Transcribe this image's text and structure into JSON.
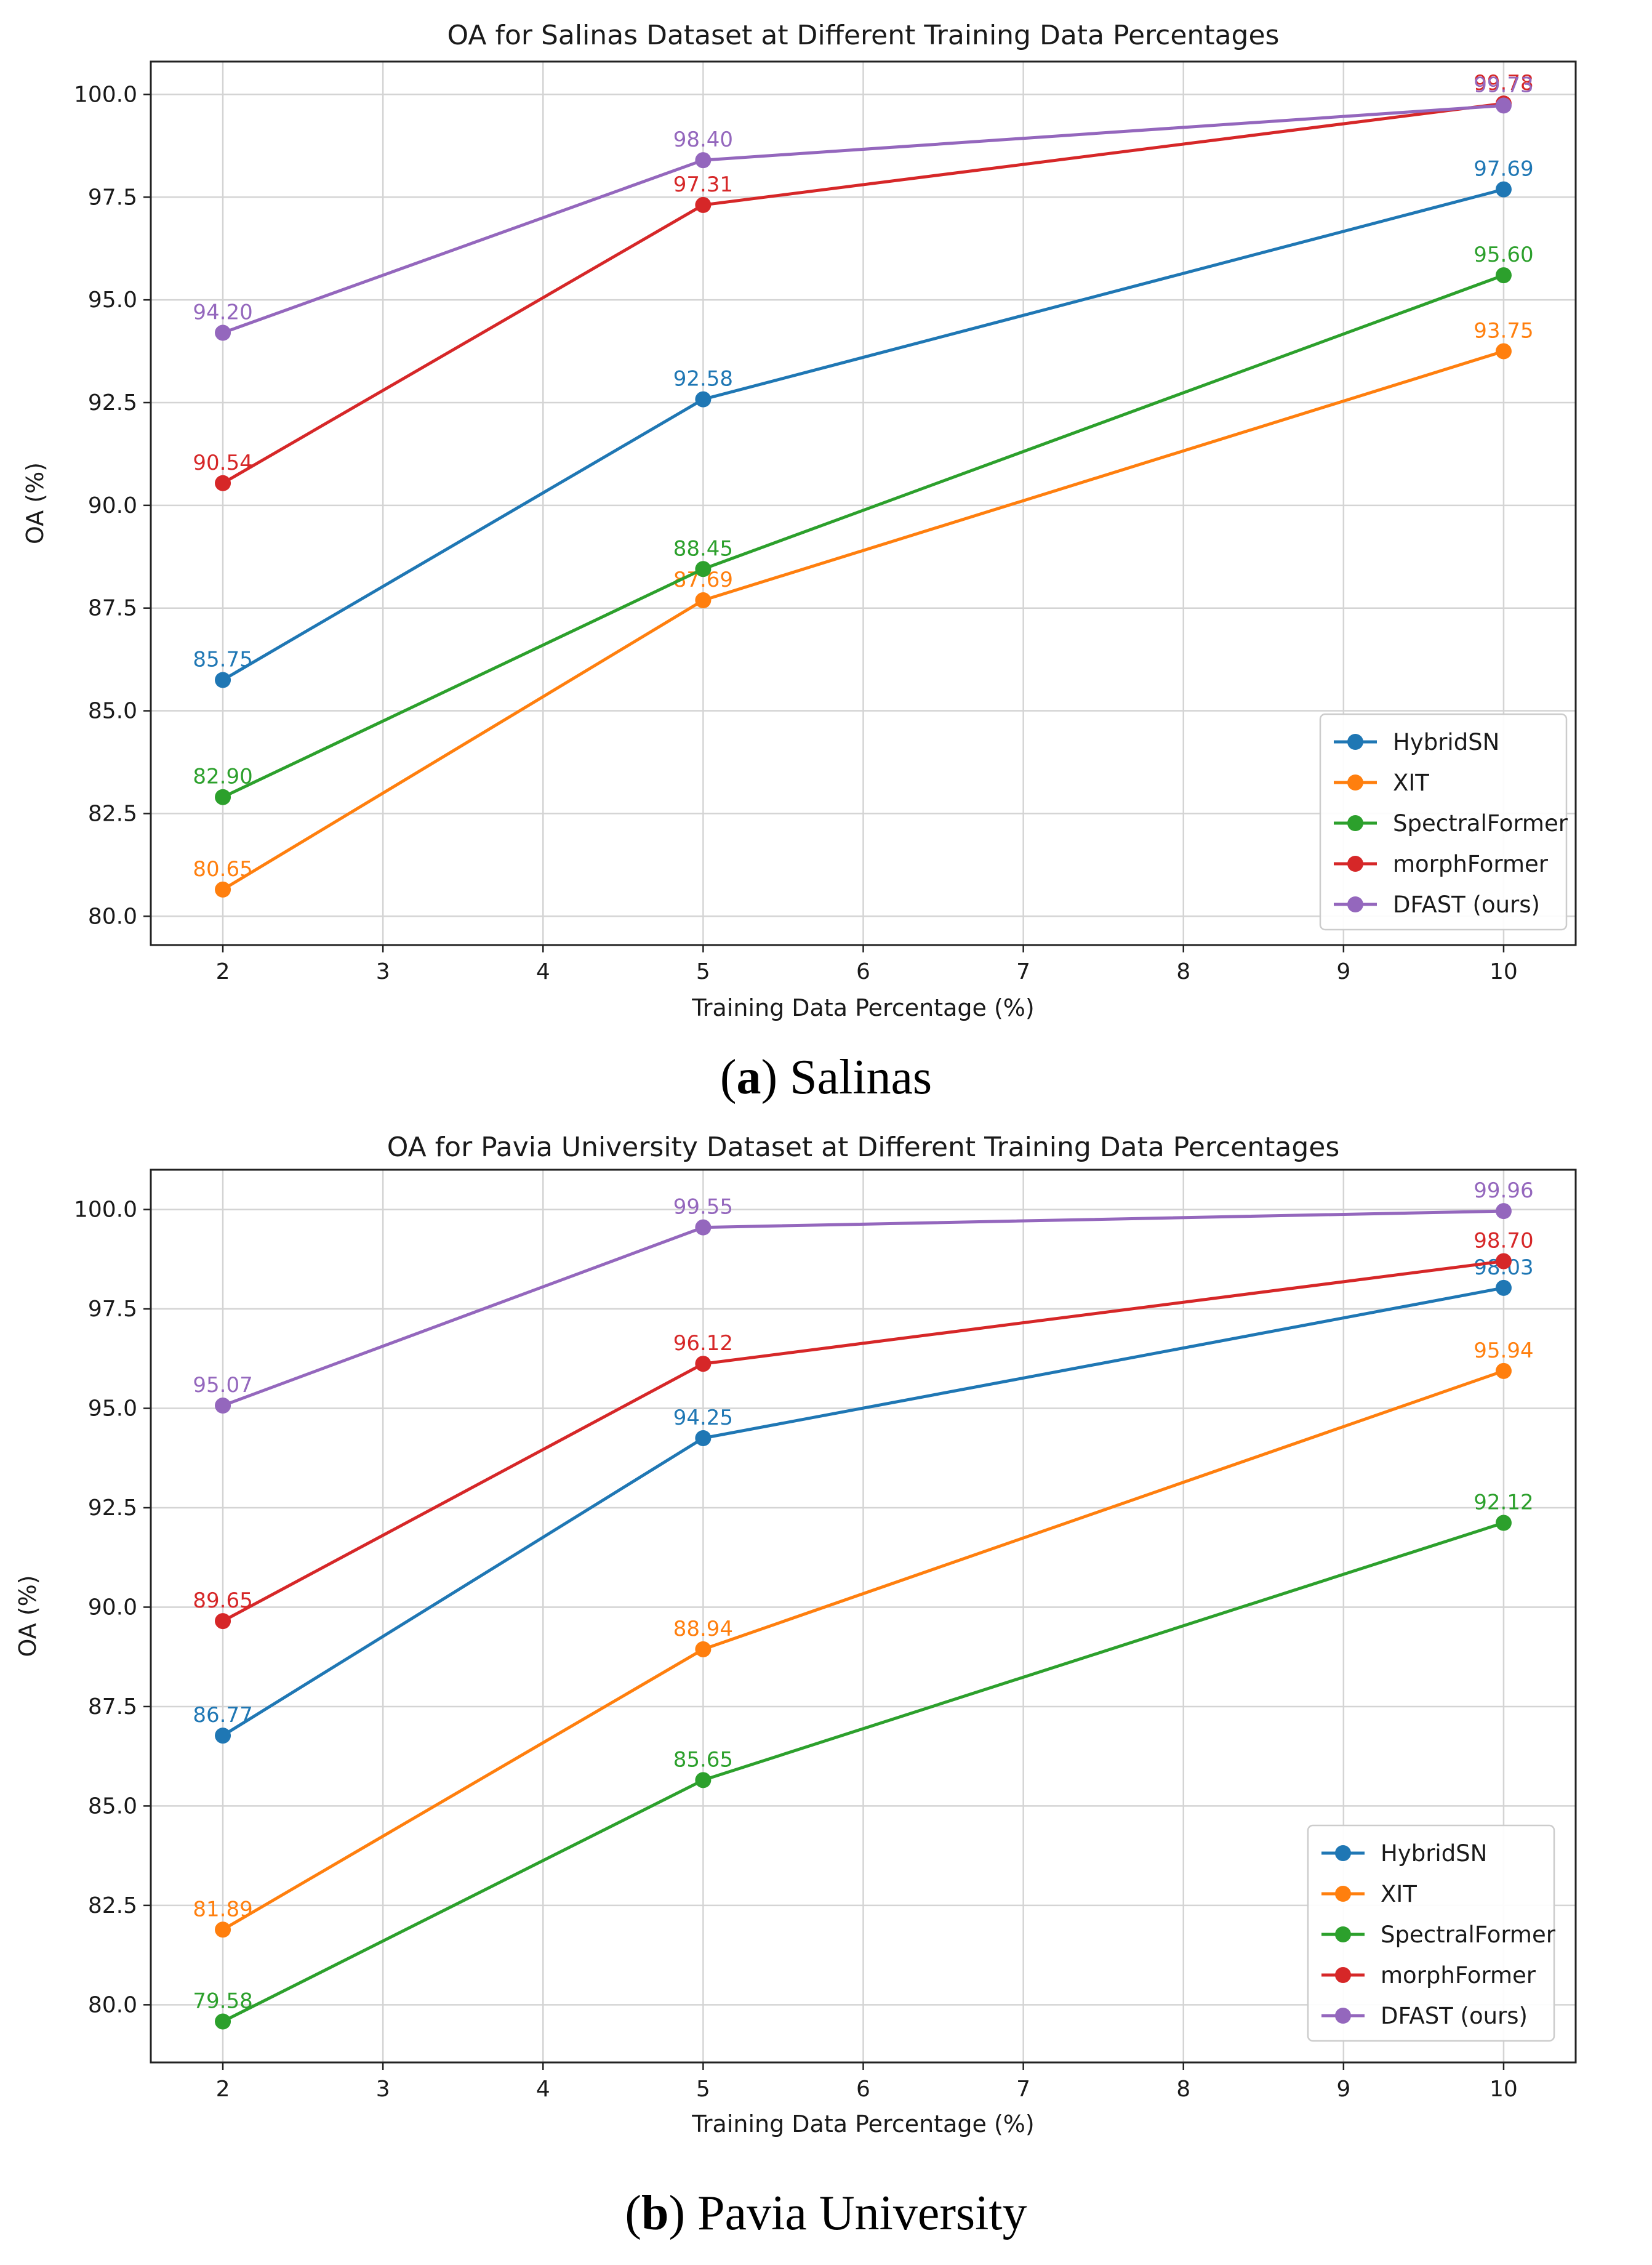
{
  "chart_data": [
    {
      "type": "line",
      "title": "OA for Salinas Dataset at Different Training Data Percentages",
      "xlabel": "Training Data Percentage (%)",
      "ylabel": "OA (%)",
      "x": [
        2,
        5,
        10
      ],
      "xticks": [
        2,
        3,
        4,
        5,
        6,
        7,
        8,
        9,
        10
      ],
      "yticks": [
        80.0,
        82.5,
        85.0,
        87.5,
        90.0,
        92.5,
        95.0,
        97.5,
        100.0
      ],
      "xlim": [
        1.55,
        10.45
      ],
      "ylim": [
        79.3,
        100.8
      ],
      "grid": true,
      "legend_position": "lower-right",
      "caption": {
        "letter": "a",
        "text": "Salinas"
      },
      "series": [
        {
          "name": "HybridSN",
          "color": "#1f77b4",
          "values": [
            85.75,
            92.58,
            97.69
          ],
          "labels": [
            "85.75",
            "92.58",
            "97.69"
          ]
        },
        {
          "name": "XIT",
          "color": "#ff7f0e",
          "values": [
            80.65,
            87.69,
            93.75
          ],
          "labels": [
            "80.65",
            "87.69",
            "93.75"
          ]
        },
        {
          "name": "SpectralFormer",
          "color": "#2ca02c",
          "values": [
            82.9,
            88.45,
            95.6
          ],
          "labels": [
            "82.90",
            "88.45",
            "95.60"
          ]
        },
        {
          "name": "morphFormer",
          "color": "#d62728",
          "values": [
            90.54,
            97.31,
            99.78
          ],
          "labels": [
            "90.54",
            "97.31",
            "99.78"
          ]
        },
        {
          "name": "DFAST (ours)",
          "color": "#9467bd",
          "values": [
            94.2,
            98.4,
            99.73
          ],
          "labels": [
            "94.20",
            "98.40",
            "99.73"
          ]
        }
      ]
    },
    {
      "type": "line",
      "title": "OA for Pavia University Dataset at Different Training Data Percentages",
      "xlabel": "Training Data Percentage (%)",
      "ylabel": "OA (%)",
      "x": [
        2,
        5,
        10
      ],
      "xticks": [
        2,
        3,
        4,
        5,
        6,
        7,
        8,
        9,
        10
      ],
      "yticks": [
        80.0,
        82.5,
        85.0,
        87.5,
        90.0,
        92.5,
        95.0,
        97.5,
        100.0
      ],
      "xlim": [
        1.55,
        10.45
      ],
      "ylim": [
        78.55,
        101.0
      ],
      "grid": true,
      "legend_position": "lower-right",
      "caption": {
        "letter": "b",
        "text": "Pavia University"
      },
      "series": [
        {
          "name": "HybridSN",
          "color": "#1f77b4",
          "values": [
            86.77,
            94.25,
            98.03
          ],
          "labels": [
            "86.77",
            "94.25",
            "98.03"
          ]
        },
        {
          "name": "XIT",
          "color": "#ff7f0e",
          "values": [
            81.89,
            88.94,
            95.94
          ],
          "labels": [
            "81.89",
            "88.94",
            "95.94"
          ]
        },
        {
          "name": "SpectralFormer",
          "color": "#2ca02c",
          "values": [
            79.58,
            85.65,
            92.12
          ],
          "labels": [
            "79.58",
            "85.65",
            "92.12"
          ]
        },
        {
          "name": "morphFormer",
          "color": "#d62728",
          "values": [
            89.65,
            96.12,
            98.7
          ],
          "labels": [
            "89.65",
            "96.12",
            "98.70"
          ]
        },
        {
          "name": "DFAST (ours)",
          "color": "#9467bd",
          "values": [
            95.07,
            99.55,
            99.96
          ],
          "labels": [
            "95.07",
            "99.55",
            "99.96"
          ]
        }
      ]
    }
  ]
}
